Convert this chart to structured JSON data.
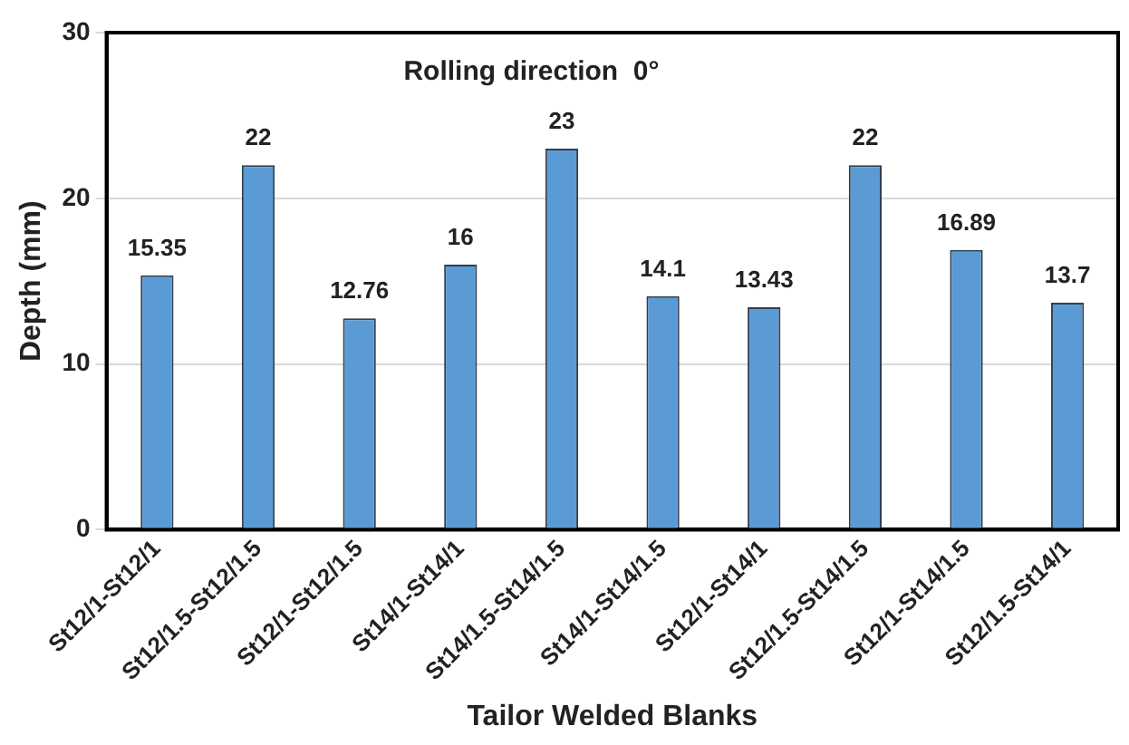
{
  "chart_data": {
    "type": "bar",
    "title": "Rolling direction  0°",
    "xlabel": "Tailor Welded Blanks",
    "ylabel": "Depth (mm)",
    "categories": [
      "St12/1-St12/1",
      "St12/1.5-St12/1.5",
      "St12/1-St12/1.5",
      "St14/1-St14/1",
      "St14/1.5-St14/1.5",
      "St14/1-St14/1.5",
      "St12/1-St14/1",
      "St12/1.5-St14/1.5",
      "St12/1-St14/1.5",
      "St12/1.5-St14/1"
    ],
    "values": [
      15.35,
      22,
      12.76,
      16,
      23,
      14.1,
      13.43,
      22,
      16.89,
      13.7
    ],
    "color": "#5b9bd5",
    "ylim": [
      0,
      30
    ],
    "yticks": [
      0,
      10,
      20,
      30
    ],
    "grid": "y",
    "data_labels": true
  }
}
